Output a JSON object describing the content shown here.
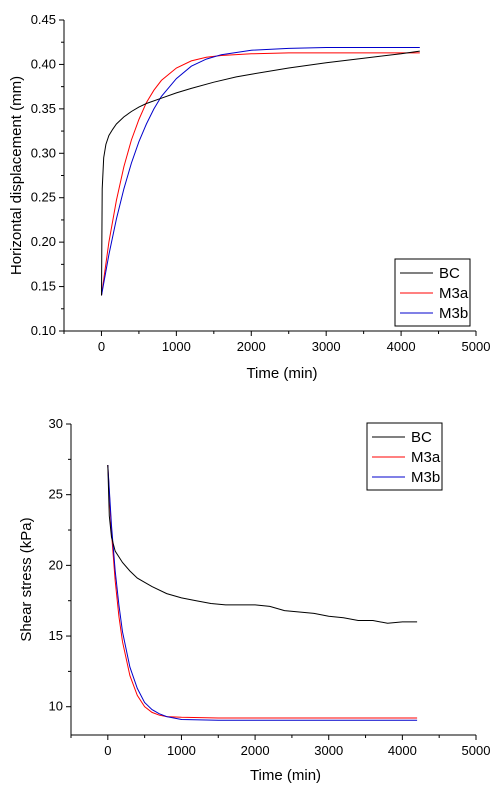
{
  "chart_data": [
    {
      "type": "line",
      "xlabel": "Time (min)",
      "ylabel": "Horizontal displacement (mm)",
      "xlim": [
        -500,
        5000
      ],
      "ylim": [
        0.1,
        0.45
      ],
      "xticks": [
        "0",
        "1000",
        "2000",
        "3000",
        "4000",
        "5000"
      ],
      "yticks": [
        "0.10",
        "0.15",
        "0.20",
        "0.25",
        "0.30",
        "0.35",
        "0.40",
        "0.45"
      ],
      "legend_position": "bottom-right",
      "series": [
        {
          "name": "BC",
          "color": "#000000",
          "x": [
            0,
            10,
            30,
            60,
            100,
            150,
            200,
            300,
            400,
            500,
            600,
            800,
            1000,
            1200,
            1500,
            1800,
            2000,
            2500,
            3000,
            3500,
            4000,
            4250
          ],
          "y": [
            0.14,
            0.26,
            0.295,
            0.31,
            0.32,
            0.327,
            0.333,
            0.341,
            0.347,
            0.352,
            0.356,
            0.362,
            0.368,
            0.373,
            0.38,
            0.386,
            0.389,
            0.396,
            0.402,
            0.407,
            0.412,
            0.415
          ]
        },
        {
          "name": "M3a",
          "color": "#ff0000",
          "x": [
            0,
            100,
            200,
            300,
            400,
            500,
            600,
            700,
            800,
            1000,
            1200,
            1400,
            1600,
            2000,
            2500,
            3000,
            4250
          ],
          "y": [
            0.14,
            0.2,
            0.247,
            0.285,
            0.315,
            0.338,
            0.357,
            0.371,
            0.382,
            0.396,
            0.404,
            0.408,
            0.41,
            0.412,
            0.413,
            0.413,
            0.413
          ]
        },
        {
          "name": "M3b",
          "color": "#0000cc",
          "x": [
            0,
            100,
            200,
            300,
            400,
            500,
            600,
            700,
            800,
            1000,
            1200,
            1400,
            1600,
            2000,
            2500,
            3000,
            4250
          ],
          "y": [
            0.14,
            0.186,
            0.226,
            0.26,
            0.289,
            0.313,
            0.333,
            0.35,
            0.364,
            0.384,
            0.398,
            0.406,
            0.411,
            0.416,
            0.418,
            0.419,
            0.419
          ]
        }
      ]
    },
    {
      "type": "line",
      "xlabel": "Time (min)",
      "ylabel": "Shear stress (kPa)",
      "xlim": [
        -500,
        5000
      ],
      "ylim": [
        8,
        30
      ],
      "xticks": [
        "0",
        "1000",
        "2000",
        "3000",
        "4000",
        "5000"
      ],
      "yticks": [
        "10",
        "15",
        "20",
        "25",
        "30"
      ],
      "legend_position": "top-right",
      "series": [
        {
          "name": "BC",
          "color": "#000000",
          "x": [
            0,
            20,
            50,
            100,
            150,
            200,
            300,
            400,
            500,
            600,
            800,
            1000,
            1200,
            1400,
            1600,
            1800,
            2000,
            2200,
            2400,
            2600,
            2800,
            3000,
            3200,
            3400,
            3600,
            3800,
            4000,
            4200
          ],
          "y": [
            27.1,
            23.5,
            22.0,
            21.0,
            20.6,
            20.2,
            19.6,
            19.1,
            18.8,
            18.5,
            18.0,
            17.7,
            17.5,
            17.3,
            17.2,
            17.2,
            17.2,
            17.1,
            16.8,
            16.7,
            16.6,
            16.4,
            16.3,
            16.1,
            16.1,
            15.9,
            16.0,
            16.0
          ]
        },
        {
          "name": "M3a",
          "color": "#ff0000",
          "x": [
            0,
            50,
            100,
            150,
            200,
            300,
            400,
            500,
            600,
            700,
            800,
            1000,
            1500,
            2000,
            3000,
            4200
          ],
          "y": [
            27.1,
            22.3,
            18.9,
            16.4,
            14.6,
            12.2,
            10.8,
            10.0,
            9.6,
            9.4,
            9.3,
            9.25,
            9.2,
            9.2,
            9.2,
            9.2
          ]
        },
        {
          "name": "M3b",
          "color": "#0000cc",
          "x": [
            0,
            50,
            100,
            150,
            200,
            300,
            400,
            500,
            600,
            700,
            800,
            1000,
            1500,
            2000,
            3000,
            4200
          ],
          "y": [
            27.1,
            22.8,
            19.6,
            17.2,
            15.3,
            12.8,
            11.3,
            10.3,
            9.8,
            9.5,
            9.3,
            9.1,
            9.05,
            9.05,
            9.05,
            9.05
          ]
        }
      ]
    }
  ]
}
